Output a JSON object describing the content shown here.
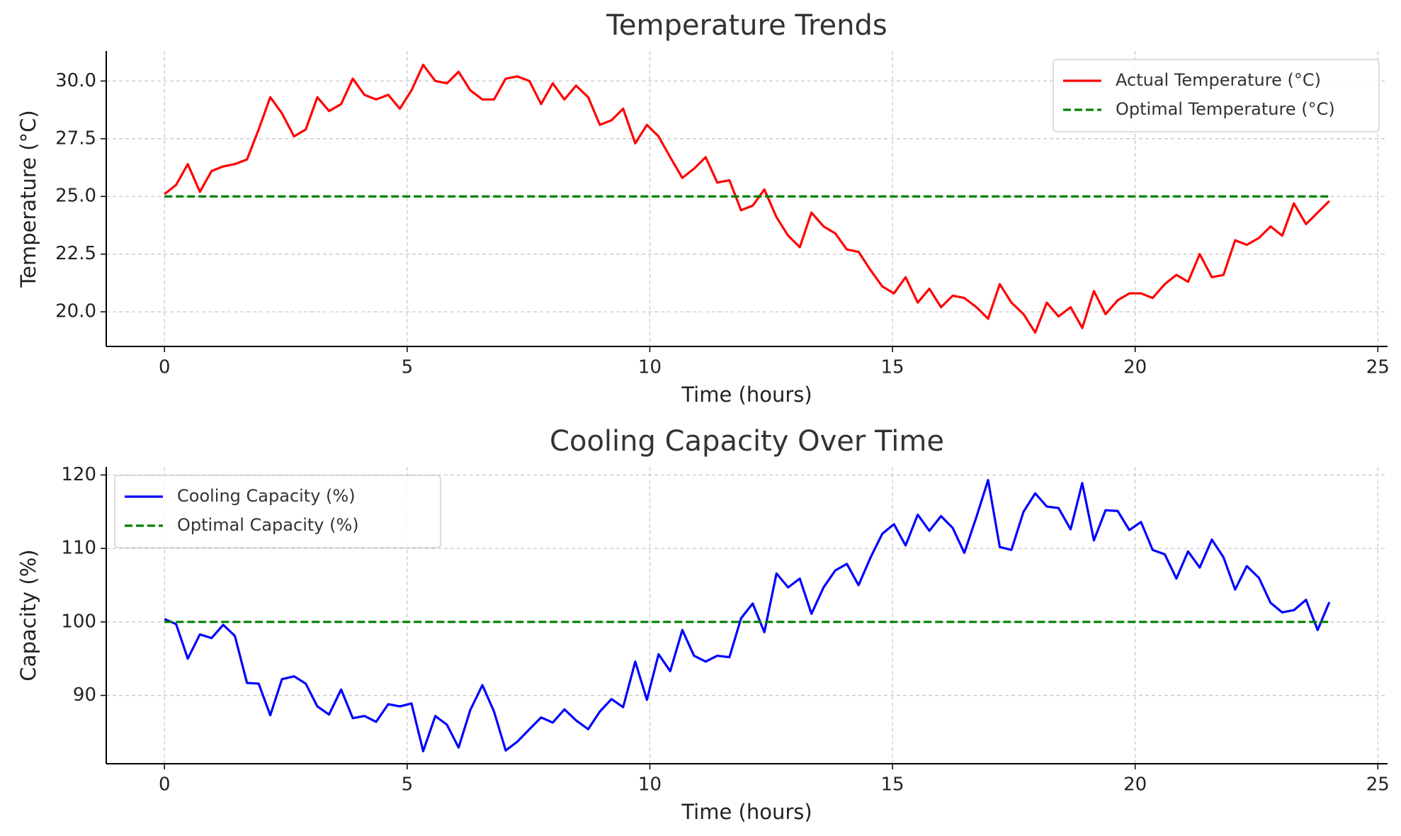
{
  "chart_data": [
    {
      "type": "line",
      "title": "Temperature Trends",
      "xlabel": "Time (hours)",
      "ylabel": "Temperature (°C)",
      "x": [
        0,
        0.24,
        0.48,
        0.73,
        0.97,
        1.21,
        1.45,
        1.7,
        1.94,
        2.18,
        2.42,
        2.67,
        2.91,
        3.15,
        3.39,
        3.64,
        3.88,
        4.12,
        4.36,
        4.61,
        4.85,
        5.09,
        5.33,
        5.58,
        5.82,
        6.06,
        6.3,
        6.55,
        6.79,
        7.03,
        7.27,
        7.52,
        7.76,
        8.0,
        8.24,
        8.48,
        8.73,
        8.97,
        9.21,
        9.45,
        9.7,
        9.94,
        10.18,
        10.42,
        10.67,
        10.91,
        11.15,
        11.39,
        11.64,
        11.88,
        12.12,
        12.36,
        12.61,
        12.85,
        13.09,
        13.33,
        13.58,
        13.82,
        14.06,
        14.3,
        14.55,
        14.79,
        15.03,
        15.27,
        15.52,
        15.76,
        16.0,
        16.24,
        16.48,
        16.73,
        16.97,
        17.21,
        17.45,
        17.7,
        17.94,
        18.18,
        18.42,
        18.67,
        18.91,
        19.15,
        19.39,
        19.64,
        19.88,
        20.12,
        20.36,
        20.61,
        20.85,
        21.09,
        21.33,
        21.58,
        21.82,
        22.06,
        22.3,
        22.55,
        22.79,
        23.03,
        23.27,
        23.52,
        23.76,
        24
      ],
      "series": [
        {
          "name": "Actual Temperature (°C)",
          "color": "#ff0000",
          "linestyle": "solid",
          "values": [
            25.1,
            25.5,
            26.4,
            25.2,
            26.1,
            26.3,
            26.4,
            26.6,
            27.9,
            29.3,
            28.6,
            27.6,
            27.9,
            29.3,
            28.7,
            29.0,
            30.1,
            29.4,
            29.2,
            29.4,
            28.8,
            29.6,
            30.7,
            30.0,
            29.9,
            30.4,
            29.6,
            29.2,
            29.2,
            30.1,
            30.2,
            30.0,
            29.0,
            29.9,
            29.2,
            29.8,
            29.3,
            28.1,
            28.3,
            28.8,
            27.3,
            28.1,
            27.6,
            26.7,
            25.8,
            26.2,
            26.7,
            25.6,
            25.7,
            24.4,
            24.6,
            25.3,
            24.1,
            23.3,
            22.8,
            24.3,
            23.7,
            23.4,
            22.7,
            22.6,
            21.8,
            21.1,
            20.8,
            21.5,
            20.4,
            21.0,
            20.2,
            20.7,
            20.6,
            20.2,
            19.7,
            21.2,
            20.4,
            19.9,
            19.1,
            20.4,
            19.8,
            20.2,
            19.3,
            20.9,
            19.9,
            20.5,
            20.8,
            20.8,
            20.6,
            21.2,
            21.6,
            21.3,
            22.5,
            21.5,
            21.6,
            23.1,
            22.9,
            23.2,
            23.7,
            23.3,
            24.7,
            23.8,
            24.3,
            24.8
          ]
        },
        {
          "name": "Optimal Temperature (°C)",
          "color": "#008000",
          "linestyle": "dashed",
          "x": [
            0,
            24
          ],
          "values": [
            25,
            25
          ]
        }
      ],
      "xlim": [
        -1.2,
        25.2
      ],
      "ylim": [
        18.5,
        31.3
      ],
      "xticks": [
        0,
        5,
        10,
        15,
        20,
        25
      ],
      "yticks": [
        {
          "value": 20,
          "label": "20.0"
        },
        {
          "value": 22.5,
          "label": "22.5"
        },
        {
          "value": 25,
          "label": "25.0"
        },
        {
          "value": 27.5,
          "label": "27.5"
        },
        {
          "value": 30,
          "label": "30.0"
        }
      ],
      "grid": true,
      "legend": "upper right"
    },
    {
      "type": "line",
      "title": "Cooling Capacity Over Time",
      "xlabel": "Time (hours)",
      "ylabel": "Capacity (%)",
      "x": [
        0,
        0.24,
        0.48,
        0.73,
        0.97,
        1.21,
        1.45,
        1.7,
        1.94,
        2.18,
        2.42,
        2.67,
        2.91,
        3.15,
        3.39,
        3.64,
        3.88,
        4.12,
        4.36,
        4.61,
        4.85,
        5.09,
        5.33,
        5.58,
        5.82,
        6.06,
        6.3,
        6.55,
        6.79,
        7.03,
        7.27,
        7.52,
        7.76,
        8.0,
        8.24,
        8.48,
        8.73,
        8.97,
        9.21,
        9.45,
        9.7,
        9.94,
        10.18,
        10.42,
        10.67,
        10.91,
        11.15,
        11.39,
        11.64,
        11.88,
        12.12,
        12.36,
        12.61,
        12.85,
        13.09,
        13.33,
        13.58,
        13.82,
        14.06,
        14.3,
        14.55,
        14.79,
        15.03,
        15.27,
        15.52,
        15.76,
        16.0,
        16.24,
        16.48,
        16.73,
        16.97,
        17.21,
        17.45,
        17.7,
        17.94,
        18.18,
        18.42,
        18.67,
        18.91,
        19.15,
        19.39,
        19.64,
        19.88,
        20.12,
        20.36,
        20.61,
        20.85,
        21.09,
        21.33,
        21.58,
        21.82,
        22.06,
        22.3,
        22.55,
        22.79,
        23.03,
        23.27,
        23.52,
        23.76,
        24
      ],
      "series": [
        {
          "name": "Cooling Capacity (%)",
          "color": "#0000ff",
          "linestyle": "solid",
          "values": [
            100.4,
            99.7,
            95.0,
            98.3,
            97.8,
            99.6,
            98.1,
            91.7,
            91.6,
            87.3,
            92.2,
            92.6,
            91.6,
            88.5,
            87.4,
            90.8,
            86.9,
            87.2,
            86.4,
            88.8,
            88.5,
            88.9,
            82.4,
            87.2,
            86.0,
            82.9,
            88.0,
            91.4,
            87.8,
            82.5,
            83.7,
            85.4,
            87.0,
            86.3,
            88.1,
            86.6,
            85.4,
            87.8,
            89.5,
            88.4,
            94.6,
            89.4,
            95.6,
            93.3,
            98.9,
            95.4,
            94.6,
            95.4,
            95.2,
            100.5,
            102.5,
            98.6,
            106.6,
            104.7,
            105.9,
            101.1,
            104.7,
            107.0,
            107.9,
            105.0,
            108.8,
            112.0,
            113.3,
            110.4,
            114.6,
            112.4,
            114.4,
            112.8,
            109.4,
            114.3,
            119.3,
            110.2,
            109.8,
            115.0,
            117.5,
            115.7,
            115.5,
            112.6,
            118.9,
            111.1,
            115.2,
            115.1,
            112.5,
            113.6,
            109.8,
            109.2,
            105.9,
            109.6,
            107.4,
            111.2,
            108.8,
            104.4,
            107.6,
            106.0,
            102.6,
            101.3,
            101.6,
            103.0,
            98.9,
            102.7
          ]
        },
        {
          "name": "Optimal Capacity (%)",
          "color": "#008000",
          "linestyle": "dashed",
          "x": [
            0,
            24
          ],
          "values": [
            100,
            100
          ]
        }
      ],
      "xlim": [
        -1.2,
        25.2
      ],
      "ylim": [
        80.7,
        121.1
      ],
      "xticks": [
        0,
        5,
        10,
        15,
        20,
        25
      ],
      "yticks": [
        90,
        100,
        110,
        120
      ],
      "grid": true,
      "legend": "upper left"
    }
  ]
}
